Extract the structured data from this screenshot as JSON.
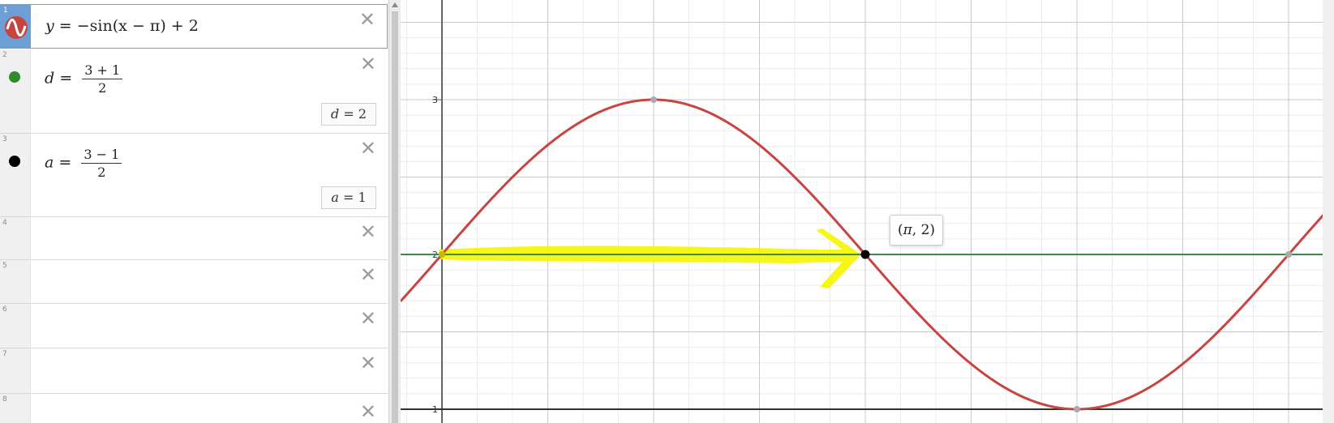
{
  "expressions": [
    {
      "num": "1",
      "latex_parts": {
        "lhs": "y",
        "eq": "=",
        "rhs": "−sin(x − π) + 2"
      },
      "icon": "sine-graph-icon",
      "color": "#c74440"
    },
    {
      "num": "2",
      "var": "d",
      "frac_top": "3 + 1",
      "frac_bot": "2",
      "result_var": "d",
      "result_val": "2",
      "icon": "green-point-icon",
      "color": "#2d8b2d"
    },
    {
      "num": "3",
      "var": "a",
      "frac_top": "3 − 1",
      "frac_bot": "2",
      "result_var": "a",
      "result_val": "1",
      "icon": "black-point-icon",
      "color": "#000000"
    },
    {
      "num": "4"
    },
    {
      "num": "5"
    },
    {
      "num": "6"
    },
    {
      "num": "7"
    },
    {
      "num": "8"
    }
  ],
  "close_glyph": "✕",
  "graph": {
    "y_tick_labels": [
      {
        "v": 3,
        "label": "3"
      },
      {
        "v": 2,
        "label": "2"
      },
      {
        "v": 1,
        "label": "1"
      }
    ],
    "point_label": {
      "open": "(",
      "pi": "π",
      "rest": ", 2)"
    },
    "curve_color": "#c74440",
    "line_color": "#388c46",
    "highlight_color": "#f5f500"
  }
}
